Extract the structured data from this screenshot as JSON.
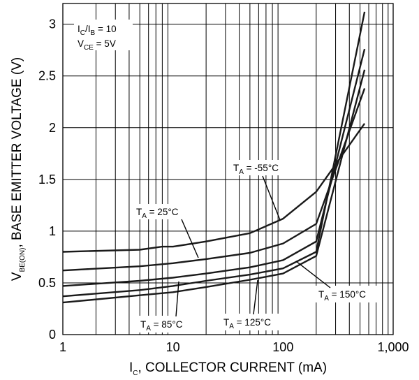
{
  "chart_data": {
    "type": "line",
    "x_scale": "log",
    "xlim": [
      1,
      1000
    ],
    "ylim": [
      0,
      3.2
    ],
    "grid": true,
    "x_ticks": [
      1,
      10,
      100,
      1000
    ],
    "x_tick_labels": [
      "1",
      "10",
      "100",
      "1,000"
    ],
    "y_ticks": [
      0,
      0.5,
      1,
      1.5,
      2,
      2.5,
      3
    ],
    "y_tick_labels": [
      "0",
      "0.5",
      "1",
      "1.5",
      "2",
      "2.5",
      "3"
    ],
    "xlabel": {
      "pre": "I",
      "sub": "C",
      "post": ", COLLECTOR CURRENT (mA)"
    },
    "ylabel": {
      "pre": "V",
      "sub": "BE(ON)",
      "post": ", BASE EMITTER VOLTAGE (V)"
    },
    "conditions": [
      {
        "pre": "I",
        "sub1": "C",
        "mid": "/I",
        "sub2": "B",
        "post": " = 10"
      },
      {
        "pre": "V",
        "sub1": "CE",
        "mid": "",
        "sub2": "",
        "post": " = 5V"
      }
    ],
    "series": [
      {
        "label": {
          "pre": "T",
          "sub": "A",
          "post": " = -55°C"
        },
        "points": [
          [
            1,
            0.8
          ],
          [
            5,
            0.82
          ],
          [
            8,
            0.85
          ],
          [
            10,
            0.85
          ],
          [
            20,
            0.9
          ],
          [
            50,
            0.98
          ],
          [
            100,
            1.12
          ],
          [
            200,
            1.38
          ],
          [
            550,
            2.04
          ]
        ]
      },
      {
        "label": {
          "pre": "T",
          "sub": "A",
          "post": " = 25°C"
        },
        "points": [
          [
            1,
            0.62
          ],
          [
            5,
            0.66
          ],
          [
            10,
            0.69
          ],
          [
            20,
            0.73
          ],
          [
            50,
            0.79
          ],
          [
            100,
            0.88
          ],
          [
            200,
            1.07
          ],
          [
            550,
            2.38
          ]
        ]
      },
      {
        "label": {
          "pre": "T",
          "sub": "A",
          "post": " = 85°C"
        },
        "points": [
          [
            1,
            0.47
          ],
          [
            5,
            0.52
          ],
          [
            10,
            0.55
          ],
          [
            20,
            0.59
          ],
          [
            50,
            0.65
          ],
          [
            100,
            0.72
          ],
          [
            200,
            0.9
          ],
          [
            550,
            2.76
          ]
        ]
      },
      {
        "label": {
          "pre": "T",
          "sub": "A",
          "post": " = 125°C"
        },
        "points": [
          [
            1,
            0.37
          ],
          [
            5,
            0.43
          ],
          [
            10,
            0.47
          ],
          [
            20,
            0.52
          ],
          [
            50,
            0.58
          ],
          [
            100,
            0.64
          ],
          [
            200,
            0.8
          ],
          [
            550,
            3.12
          ]
        ]
      },
      {
        "label": {
          "pre": "T",
          "sub": "A",
          "post": " = 150°C"
        },
        "points": [
          [
            1,
            0.31
          ],
          [
            5,
            0.38
          ],
          [
            10,
            0.41
          ],
          [
            20,
            0.46
          ],
          [
            50,
            0.53
          ],
          [
            100,
            0.59
          ],
          [
            200,
            0.76
          ],
          [
            550,
            2.56
          ]
        ]
      }
    ]
  }
}
